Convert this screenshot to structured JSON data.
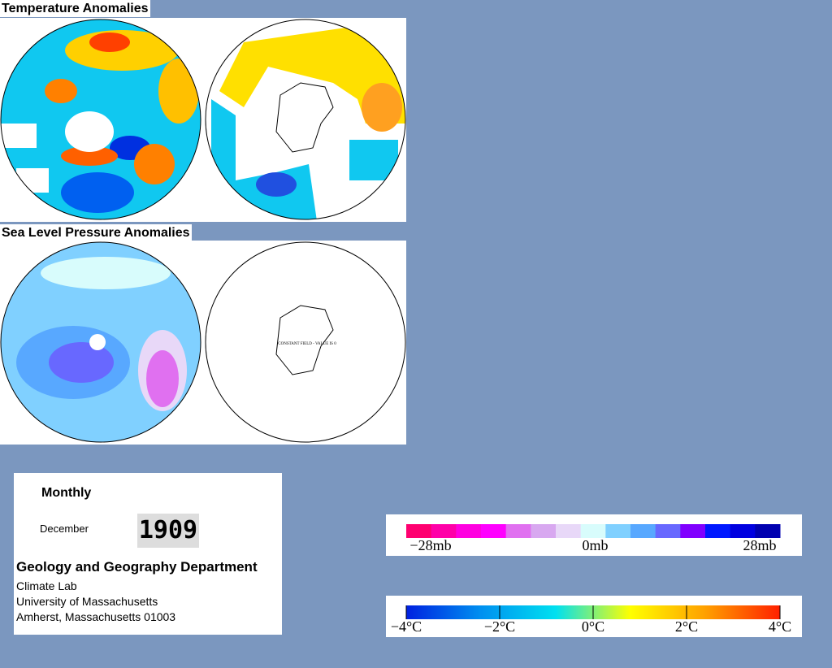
{
  "temperature_title": "Temperature Anomalies",
  "pressure_title": "Sea Level Pressure Anomalies",
  "constant_field_note": "CONSTANT FIELD - VALUE IS 0",
  "info": {
    "period": "Monthly",
    "month": "December",
    "year": "1909",
    "department": "Geology and Geography Department",
    "address_lines": [
      "Climate Lab",
      "University of Massachusetts",
      "Amherst, Massachusetts 01003"
    ]
  },
  "pressure_legend": {
    "labels": [
      "−28mb",
      "0mb",
      "28mb"
    ],
    "colors": [
      "#ff0070",
      "#ff00a8",
      "#ff00e0",
      "#ff00ff",
      "#e070f0",
      "#d8a8f0",
      "#e8d8f8",
      "#d8fcfc",
      "#80d0ff",
      "#58a8ff",
      "#6868ff",
      "#8000ff",
      "#0018ff",
      "#0000e0",
      "#0000b0"
    ]
  },
  "temperature_legend": {
    "labels": [
      "−4°C",
      "−2°C",
      "0°C",
      "2°C",
      "4°C"
    ],
    "colors": [
      "#0020e0",
      "#0090f0",
      "#00e0f0",
      "#ffff00",
      "#ffa000",
      "#ff2000"
    ]
  }
}
